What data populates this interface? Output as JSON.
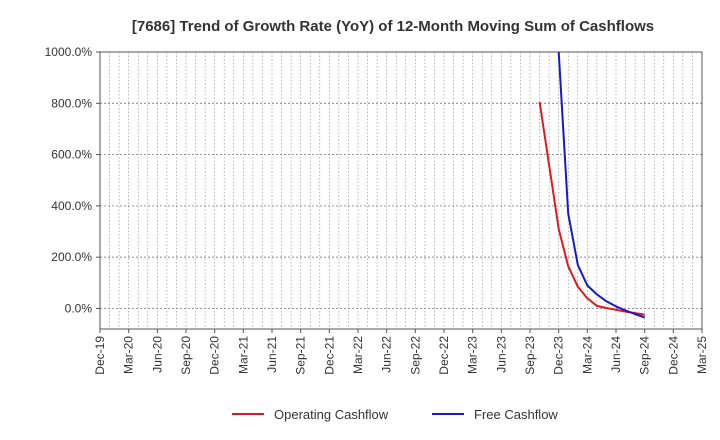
{
  "chart_data": {
    "type": "line",
    "title": "[7686]  Trend of Growth Rate (YoY) of 12-Month Moving Sum of Cashflows",
    "xlabel": "",
    "ylabel": "",
    "ylim": [
      -80,
      1000
    ],
    "y_ticks": [
      {
        "value": 1000,
        "label": "1000.0%"
      },
      {
        "value": 800,
        "label": "800.0%"
      },
      {
        "value": 600,
        "label": "600.0%"
      },
      {
        "value": 400,
        "label": "400.0%"
      },
      {
        "value": 200,
        "label": "200.0%"
      },
      {
        "value": 0,
        "label": "0.0%"
      }
    ],
    "x_ticks": [
      "Dec-19",
      "Mar-20",
      "Jun-20",
      "Sep-20",
      "Dec-20",
      "Mar-21",
      "Jun-21",
      "Sep-21",
      "Dec-21",
      "Mar-22",
      "Jun-22",
      "Sep-22",
      "Dec-22",
      "Mar-23",
      "Jun-23",
      "Sep-23",
      "Dec-23",
      "Mar-24",
      "Jun-24",
      "Sep-24",
      "Dec-24",
      "Mar-25"
    ],
    "grid": true,
    "legend_position": "bottom",
    "series": [
      {
        "name": "Operating Cashflow",
        "color": "#e0191e",
        "points": [
          {
            "x": "Oct-23",
            "y": 805
          },
          {
            "x": "Nov-23",
            "y": 560
          },
          {
            "x": "Dec-23",
            "y": 310
          },
          {
            "x": "Jan-24",
            "y": 165
          },
          {
            "x": "Feb-24",
            "y": 85
          },
          {
            "x": "Mar-24",
            "y": 40
          },
          {
            "x": "Apr-24",
            "y": 10
          },
          {
            "x": "May-24",
            "y": 2
          },
          {
            "x": "Jun-24",
            "y": -5
          },
          {
            "x": "Jul-24",
            "y": -12
          },
          {
            "x": "Aug-24",
            "y": -18
          },
          {
            "x": "Sep-24",
            "y": -24
          }
        ]
      },
      {
        "name": "Free Cashflow",
        "color": "#1919c8",
        "points": [
          {
            "x": "Dec-23",
            "y": 1000
          },
          {
            "x": "Jan-24",
            "y": 370
          },
          {
            "x": "Feb-24",
            "y": 170
          },
          {
            "x": "Mar-24",
            "y": 90
          },
          {
            "x": "Apr-24",
            "y": 55
          },
          {
            "x": "May-24",
            "y": 28
          },
          {
            "x": "Jun-24",
            "y": 8
          },
          {
            "x": "Jul-24",
            "y": -8
          },
          {
            "x": "Aug-24",
            "y": -22
          },
          {
            "x": "Sep-24",
            "y": -35
          }
        ]
      }
    ]
  }
}
